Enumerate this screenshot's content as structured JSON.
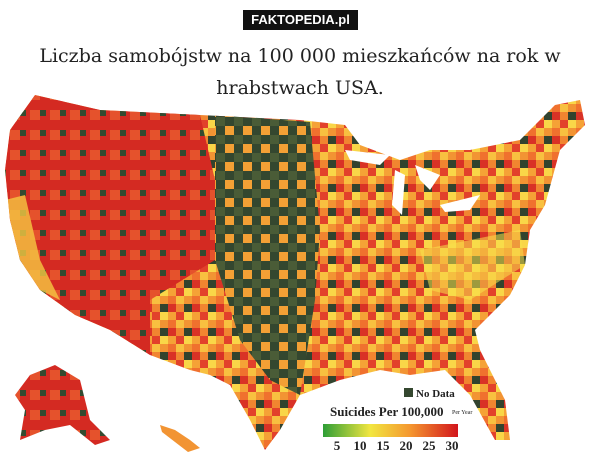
{
  "header": {
    "watermark": "FAKTOPEDIA.pl",
    "title": "Liczba samobójstw na 100 000 mieszkańców na rok w hrabstwach USA."
  },
  "map": {
    "legend": {
      "no_data": "No Data",
      "title": "Suicides Per 100,000",
      "unit": "Per Year",
      "ticks": [
        5,
        10,
        15,
        20,
        25,
        30
      ]
    }
  }
}
